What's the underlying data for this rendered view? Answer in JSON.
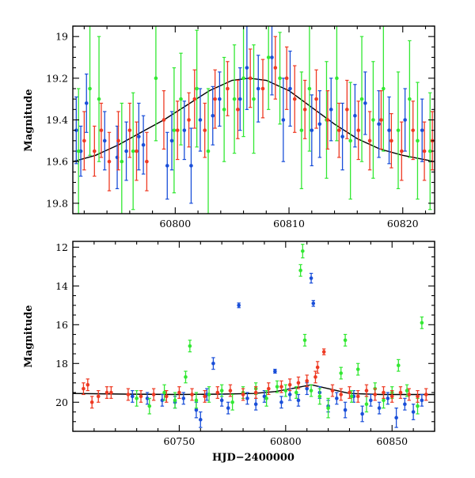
{
  "chart_data": [
    {
      "type": "scatter",
      "panel": "top",
      "title": "",
      "xlabel": "",
      "ylabel": "Magnitude",
      "xlim": [
        60791.0,
        60822.8
      ],
      "ylim": [
        19.85,
        18.95
      ],
      "y_inverted": true,
      "xticks": [
        60800,
        60810,
        60820
      ],
      "yticks": [
        19.0,
        19.2,
        19.4,
        19.6,
        19.8
      ],
      "ytick_labels": [
        "19",
        "19.2",
        "19.4",
        "19.6",
        "19.8"
      ],
      "grid": false,
      "series_colors": [
        "#1a4fd9",
        "#33e833",
        "#ee3a23"
      ],
      "model_curve": {
        "color": "#000000",
        "x": [
          60791,
          60793,
          60795,
          60797,
          60799,
          60801,
          60803,
          60805,
          60806.5,
          60808,
          60810,
          60812,
          60814,
          60816,
          60818,
          60820,
          60822.8
        ],
        "y": [
          19.6,
          19.57,
          19.52,
          19.46,
          19.4,
          19.33,
          19.26,
          19.21,
          19.2,
          19.21,
          19.26,
          19.34,
          19.42,
          19.49,
          19.54,
          19.57,
          19.6
        ]
      },
      "series": [
        {
          "color": "#1a4fd9",
          "x": [
            60791.3,
            60791.7,
            60792.2,
            60793.8,
            60794.9,
            60795.7,
            60796.8,
            60797.2,
            60799.3,
            60799.7,
            60800.8,
            60801.4,
            60802.2,
            60803.3,
            60803.9,
            60805.7,
            60806.3,
            60807.3,
            60808.5,
            60809.5,
            60810.1,
            60812.0,
            60812.7,
            60813.7,
            60814.7,
            60815.8,
            60816.7,
            60817.9,
            60818.8,
            60820.2,
            60821.7
          ],
          "y": [
            19.45,
            19.55,
            19.32,
            19.5,
            19.58,
            19.55,
            19.48,
            19.52,
            19.62,
            19.5,
            19.45,
            19.62,
            19.4,
            19.38,
            19.3,
            19.3,
            19.15,
            19.25,
            19.1,
            19.4,
            19.25,
            19.45,
            19.42,
            19.35,
            19.48,
            19.38,
            19.32,
            19.42,
            19.45,
            19.4,
            19.45
          ],
          "err": [
            0.16,
            0.12,
            0.14,
            0.14,
            0.15,
            0.14,
            0.16,
            0.14,
            0.16,
            0.14,
            0.14,
            0.18,
            0.15,
            0.14,
            0.13,
            0.15,
            0.2,
            0.16,
            0.18,
            0.2,
            0.18,
            0.17,
            0.16,
            0.15,
            0.16,
            0.15,
            0.15,
            0.16,
            0.16,
            0.15,
            0.15
          ]
        },
        {
          "color": "#33e833",
          "x": [
            60791.5,
            60792.5,
            60793.3,
            60795.3,
            60796.3,
            60798.3,
            60799.9,
            60800.5,
            60801.9,
            60802.9,
            60804.3,
            60805.2,
            60806.0,
            60806.9,
            60808.2,
            60809.2,
            60811.1,
            60811.8,
            60813.3,
            60814.2,
            60815.4,
            60816.4,
            60817.4,
            60818.3,
            60819.6,
            60820.6,
            60821.3,
            60822.4
          ],
          "y": [
            19.55,
            19.25,
            19.3,
            19.6,
            19.55,
            19.2,
            19.45,
            19.3,
            19.25,
            19.55,
            19.35,
            19.3,
            19.2,
            19.3,
            19.1,
            19.2,
            19.45,
            19.25,
            19.4,
            19.2,
            19.5,
            19.3,
            19.4,
            19.25,
            19.45,
            19.3,
            19.5,
            19.55
          ],
          "err": [
            0.3,
            0.32,
            0.3,
            0.28,
            0.28,
            0.3,
            0.3,
            0.22,
            0.28,
            0.3,
            0.25,
            0.26,
            0.28,
            0.26,
            0.25,
            0.22,
            0.28,
            0.3,
            0.28,
            0.3,
            0.28,
            0.3,
            0.28,
            0.3,
            0.28,
            0.28,
            0.28,
            0.28
          ]
        },
        {
          "color": "#ee3a23",
          "x": [
            60792.0,
            60792.9,
            60793.5,
            60794.2,
            60795.0,
            60796.0,
            60796.6,
            60797.5,
            60799.0,
            60800.2,
            60801.2,
            60801.7,
            60802.6,
            60803.5,
            60804.6,
            60805.5,
            60806.6,
            60807.7,
            60808.8,
            60809.8,
            60810.5,
            60811.4,
            60812.4,
            60813.4,
            60814.4,
            60815.1,
            60816.1,
            60817.1,
            60818.1,
            60819.0,
            60819.9,
            60820.9,
            60821.9,
            60822.6
          ],
          "y": [
            19.5,
            19.55,
            19.45,
            19.6,
            19.5,
            19.45,
            19.55,
            19.6,
            19.4,
            19.45,
            19.4,
            19.3,
            19.45,
            19.3,
            19.25,
            19.35,
            19.2,
            19.25,
            19.15,
            19.2,
            19.3,
            19.35,
            19.3,
            19.4,
            19.45,
            19.35,
            19.45,
            19.5,
            19.4,
            19.5,
            19.55,
            19.45,
            19.55,
            19.5
          ],
          "err": [
            0.14,
            0.12,
            0.13,
            0.14,
            0.14,
            0.13,
            0.14,
            0.14,
            0.14,
            0.14,
            0.13,
            0.14,
            0.13,
            0.14,
            0.13,
            0.14,
            0.14,
            0.14,
            0.15,
            0.15,
            0.16,
            0.14,
            0.14,
            0.14,
            0.13,
            0.14,
            0.14,
            0.14,
            0.14,
            0.13,
            0.14,
            0.14,
            0.14,
            0.14
          ]
        }
      ]
    },
    {
      "type": "scatter",
      "panel": "bottom",
      "title": "",
      "xlabel": "HJD−2400000",
      "ylabel": "Magnitude",
      "xlim": [
        60700.0,
        60870.0
      ],
      "ylim": [
        21.5,
        11.7
      ],
      "y_inverted": true,
      "xticks": [
        60750,
        60800,
        60850
      ],
      "yticks": [
        12,
        14,
        16,
        18,
        20
      ],
      "ytick_labels": [
        "12",
        "14",
        "16",
        "18",
        "20"
      ],
      "grid": false,
      "series_colors": [
        "#1a4fd9",
        "#33e833",
        "#ee3a23"
      ],
      "model_curve": {
        "color": "#000000",
        "x": [
          60700,
          60725,
          60750,
          60770,
          60785,
          60795,
          60805,
          60812,
          60820,
          60830,
          60845,
          60870
        ],
        "y": [
          19.55,
          19.58,
          19.6,
          19.58,
          19.55,
          19.45,
          19.25,
          19.1,
          19.3,
          19.55,
          19.6,
          19.6
        ]
      },
      "series": [
        {
          "color": "#1a4fd9",
          "x": [
            60728,
            60735,
            60742,
            60748,
            60752,
            60758,
            60760,
            60763,
            60766,
            60770,
            60773,
            60778,
            60782,
            60786,
            60790,
            60795,
            60798,
            60802,
            60806,
            60810,
            60812,
            60813,
            60816,
            60820,
            60824,
            60828,
            60832,
            60836,
            60840,
            60844,
            60848,
            60852,
            60856,
            60860,
            60864
          ],
          "y": [
            19.7,
            19.8,
            19.9,
            20.0,
            19.8,
            20.4,
            20.9,
            19.6,
            18.0,
            19.9,
            20.3,
            15.0,
            19.8,
            20.1,
            19.7,
            18.4,
            20.0,
            19.6,
            19.9,
            19.3,
            13.6,
            14.9,
            19.5,
            20.2,
            19.8,
            20.4,
            19.7,
            20.6,
            19.9,
            20.3,
            19.8,
            20.8,
            20.1,
            20.5,
            19.9
          ],
          "err": [
            0.3,
            0.3,
            0.3,
            0.3,
            0.3,
            0.4,
            0.4,
            0.3,
            0.3,
            0.3,
            0.3,
            0.12,
            0.3,
            0.3,
            0.3,
            0.1,
            0.3,
            0.3,
            0.3,
            0.3,
            0.25,
            0.15,
            0.3,
            0.3,
            0.3,
            0.4,
            0.3,
            0.4,
            0.3,
            0.3,
            0.3,
            0.5,
            0.3,
            0.4,
            0.3
          ]
        },
        {
          "color": "#33e833",
          "x": [
            60730,
            60736,
            60743,
            60748,
            60753,
            60755,
            60758,
            60764,
            60770,
            60775,
            60780,
            60786,
            60791,
            60796,
            60800,
            60805,
            60807,
            60808,
            60809,
            60812,
            60816,
            60820,
            60826,
            60828,
            60831,
            60834,
            60838,
            60842,
            60846,
            60850,
            60853,
            60857,
            60862,
            60864
          ],
          "y": [
            19.8,
            20.2,
            19.5,
            19.9,
            18.7,
            17.1,
            19.9,
            19.6,
            19.4,
            20.0,
            19.5,
            19.3,
            19.8,
            19.2,
            19.4,
            19.5,
            13.2,
            12.2,
            16.8,
            19.4,
            19.7,
            20.3,
            18.5,
            16.8,
            19.7,
            18.3,
            20.1,
            19.3,
            19.9,
            19.5,
            18.1,
            19.4,
            20.2,
            15.9
          ],
          "err": [
            0.4,
            0.4,
            0.4,
            0.4,
            0.3,
            0.3,
            0.4,
            0.4,
            0.3,
            0.4,
            0.3,
            0.3,
            0.4,
            0.3,
            0.3,
            0.3,
            0.3,
            0.35,
            0.3,
            0.3,
            0.4,
            0.5,
            0.3,
            0.3,
            0.3,
            0.3,
            0.4,
            0.3,
            0.4,
            0.3,
            0.3,
            0.3,
            0.4,
            0.3
          ]
        },
        {
          "color": "#ee3a23",
          "x": [
            60705,
            60707,
            60709,
            60712,
            60716,
            60718,
            60726,
            60732,
            60738,
            60744,
            60750,
            60756,
            60762,
            60768,
            60774,
            60780,
            60786,
            60792,
            60798,
            60802,
            60806,
            60810,
            60814,
            60815,
            60818,
            60822,
            60826,
            60830,
            60834,
            60838,
            60842,
            60846,
            60850,
            60854,
            60858,
            60862,
            60866
          ],
          "y": [
            19.3,
            19.1,
            20.0,
            19.7,
            19.5,
            19.5,
            19.6,
            19.7,
            19.6,
            19.7,
            19.5,
            19.6,
            19.7,
            19.5,
            19.4,
            19.6,
            19.5,
            19.3,
            19.2,
            19.1,
            19.0,
            18.9,
            18.7,
            18.2,
            17.4,
            19.4,
            19.6,
            19.5,
            19.7,
            19.4,
            19.6,
            19.5,
            19.7,
            19.5,
            19.6,
            19.7,
            19.6
          ],
          "err": [
            0.3,
            0.3,
            0.3,
            0.3,
            0.3,
            0.3,
            0.3,
            0.3,
            0.3,
            0.3,
            0.3,
            0.3,
            0.3,
            0.3,
            0.3,
            0.3,
            0.3,
            0.3,
            0.3,
            0.3,
            0.3,
            0.3,
            0.3,
            0.3,
            0.15,
            0.3,
            0.3,
            0.3,
            0.3,
            0.3,
            0.3,
            0.3,
            0.3,
            0.3,
            0.3,
            0.3,
            0.3
          ]
        }
      ]
    }
  ]
}
